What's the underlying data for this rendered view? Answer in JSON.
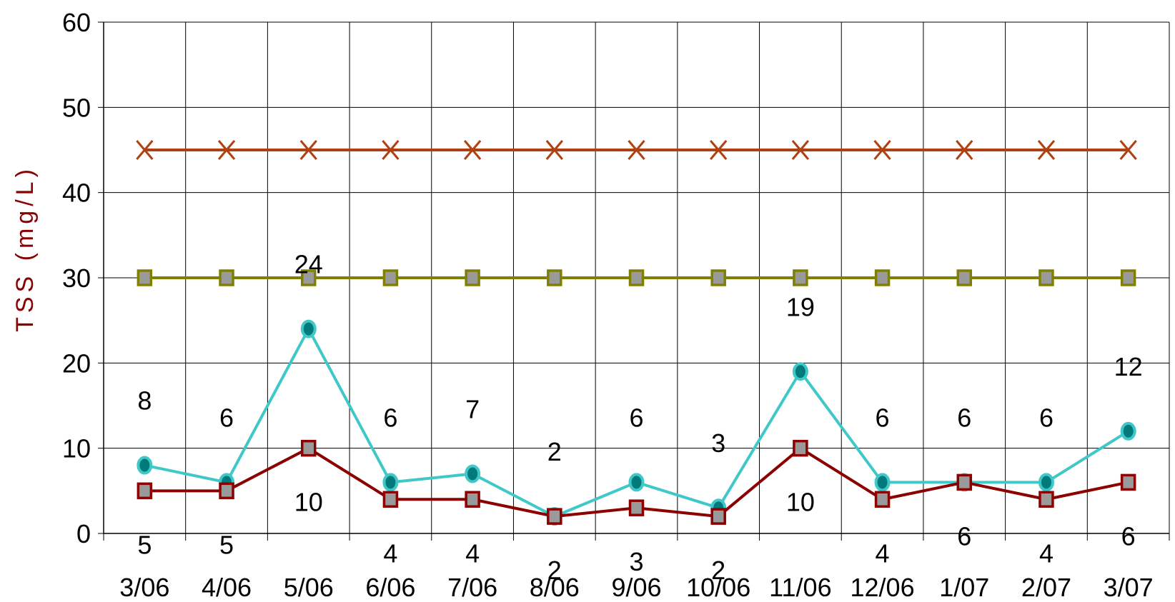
{
  "chart_data": {
    "type": "line",
    "ylabel": "TSS (mg/L)",
    "xlabel": "",
    "ylim": [
      0,
      60
    ],
    "yticks": [
      0,
      10,
      20,
      30,
      40,
      50,
      60
    ],
    "grid": true,
    "categories": [
      "3/06",
      "4/06",
      "5/06",
      "6/06",
      "7/06",
      "8/06",
      "9/06",
      "10/06",
      "11/06",
      "12/06",
      "1/07",
      "2/07",
      "3/07"
    ],
    "series": [
      {
        "name": "",
        "color": "#b04010",
        "marker": "x",
        "values": [
          45,
          45,
          45,
          45,
          45,
          45,
          45,
          45,
          45,
          45,
          45,
          45,
          45
        ],
        "show_labels": false
      },
      {
        "name": "",
        "color": "#808000",
        "marker": "square-gray",
        "values": [
          30,
          30,
          30,
          30,
          30,
          30,
          30,
          30,
          30,
          30,
          30,
          30,
          30
        ],
        "show_labels": false
      },
      {
        "name": "",
        "color": "#40c8c8",
        "marker": "circle",
        "values": [
          8,
          6,
          24,
          6,
          7,
          2,
          6,
          3,
          19,
          6,
          6,
          6,
          12
        ],
        "show_labels": true
      },
      {
        "name": "",
        "color": "#8b0000",
        "marker": "square-gray",
        "values": [
          5,
          5,
          10,
          4,
          4,
          2,
          3,
          2,
          10,
          4,
          6,
          4,
          6
        ],
        "show_labels": true
      }
    ]
  }
}
